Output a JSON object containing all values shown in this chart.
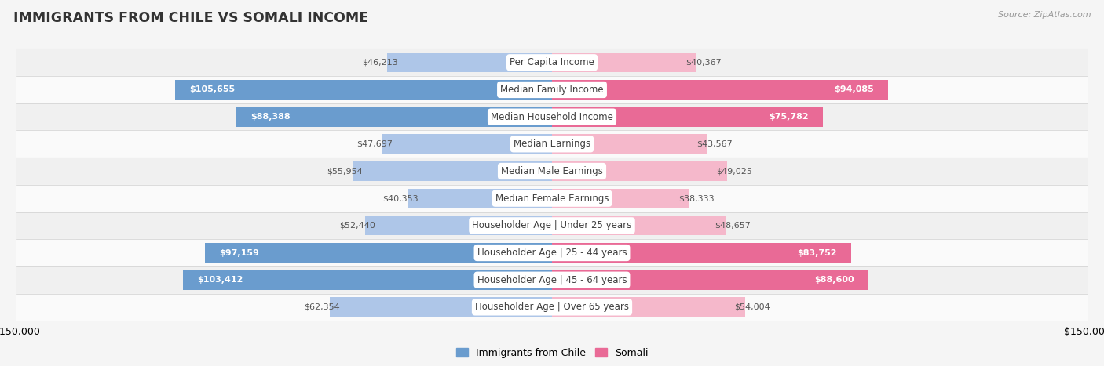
{
  "title": "IMMIGRANTS FROM CHILE VS SOMALI INCOME",
  "source": "Source: ZipAtlas.com",
  "categories": [
    "Per Capita Income",
    "Median Family Income",
    "Median Household Income",
    "Median Earnings",
    "Median Male Earnings",
    "Median Female Earnings",
    "Householder Age | Under 25 years",
    "Householder Age | 25 - 44 years",
    "Householder Age | 45 - 64 years",
    "Householder Age | Over 65 years"
  ],
  "chile_values": [
    46213,
    105655,
    88388,
    47697,
    55954,
    40353,
    52440,
    97159,
    103412,
    62354
  ],
  "somali_values": [
    40367,
    94085,
    75782,
    43567,
    49025,
    38333,
    48657,
    83752,
    88600,
    54004
  ],
  "chile_labels": [
    "$46,213",
    "$105,655",
    "$88,388",
    "$47,697",
    "$55,954",
    "$40,353",
    "$52,440",
    "$97,159",
    "$103,412",
    "$62,354"
  ],
  "somali_labels": [
    "$40,367",
    "$94,085",
    "$75,782",
    "$43,567",
    "$49,025",
    "$38,333",
    "$48,657",
    "$83,752",
    "$88,600",
    "$54,004"
  ],
  "chile_color_light": "#aec6e8",
  "chile_color_dark": "#6a9cce",
  "somali_color_light": "#f5b8cb",
  "somali_color_dark": "#e96a96",
  "chile_label_inside_threshold": 75000,
  "somali_label_inside_threshold": 75000,
  "x_max": 150000,
  "bar_height": 0.72,
  "row_bg_even": "#f0f0f0",
  "row_bg_odd": "#fafafa",
  "separator_color": "#d0d0d0",
  "background_color": "#f5f5f5",
  "legend_label_chile": "Immigrants from Chile",
  "legend_label_somali": "Somali"
}
